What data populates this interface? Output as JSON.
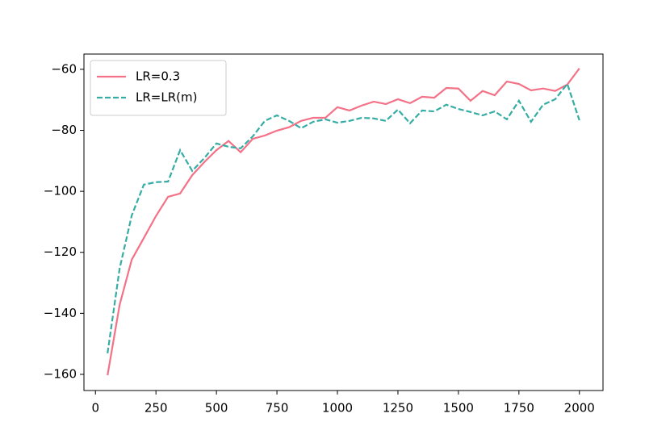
{
  "chart_data": {
    "type": "line",
    "x": [
      50,
      100,
      150,
      200,
      250,
      300,
      350,
      400,
      450,
      500,
      550,
      600,
      650,
      700,
      750,
      800,
      850,
      900,
      950,
      1000,
      1050,
      1100,
      1150,
      1200,
      1250,
      1300,
      1350,
      1400,
      1450,
      1500,
      1550,
      1600,
      1650,
      1700,
      1750,
      1800,
      1850,
      1900,
      1950,
      2000
    ],
    "series": [
      {
        "name": "LR=0.3",
        "color": "#f37287",
        "dash": "solid",
        "values": [
          -160.3,
          -137.2,
          -122.4,
          -115.3,
          -108.1,
          -101.8,
          -100.7,
          -94.7,
          -90.4,
          -86.5,
          -83.5,
          -87.2,
          -82.8,
          -81.7,
          -80.1,
          -79.0,
          -76.9,
          -75.9,
          -75.9,
          -72.4,
          -73.5,
          -71.9,
          -70.6,
          -71.4,
          -69.8,
          -71.1,
          -69.0,
          -69.3,
          -66.1,
          -66.3,
          -70.3,
          -67.1,
          -68.5,
          -64.0,
          -64.8,
          -66.9,
          -66.3,
          -67.1,
          -65.0,
          -59.7
        ]
      },
      {
        "name": "LR=LR(m)",
        "color": "#36ada4",
        "dash": "dashed",
        "values": [
          -153.1,
          -125.3,
          -107.9,
          -97.8,
          -97.0,
          -96.8,
          -86.5,
          -93.3,
          -89.1,
          -84.3,
          -85.4,
          -85.9,
          -82.0,
          -76.9,
          -75.1,
          -76.9,
          -79.3,
          -77.2,
          -76.4,
          -77.5,
          -76.9,
          -75.9,
          -76.1,
          -76.9,
          -73.2,
          -77.7,
          -73.5,
          -73.8,
          -71.6,
          -73.0,
          -74.0,
          -75.1,
          -73.8,
          -76.4,
          -70.3,
          -77.2,
          -71.6,
          -69.8,
          -64.8,
          -76.7
        ]
      }
    ],
    "xlim": [
      -47.5,
      2097.5
    ],
    "ylim": [
      -165.3,
      -55
    ],
    "xticks": [
      0,
      250,
      500,
      750,
      1000,
      1250,
      1500,
      1750,
      2000
    ],
    "yticks": [
      {
        "value": -60,
        "label": "−60"
      },
      {
        "value": -80,
        "label": "−80"
      },
      {
        "value": -100,
        "label": "−100"
      },
      {
        "value": -120,
        "label": "−120"
      },
      {
        "value": -140,
        "label": "−140"
      },
      {
        "value": -160,
        "label": "−160"
      }
    ],
    "legend": "upper left",
    "grid": false
  }
}
